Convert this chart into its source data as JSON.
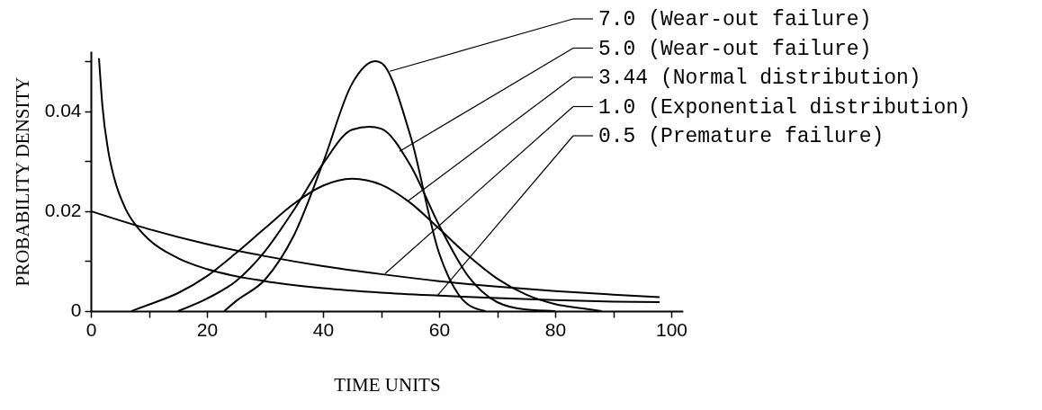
{
  "chart_data": {
    "type": "line",
    "xlabel": "TIME UNITS",
    "ylabel": "PROBABILITY DENSITY",
    "xlim": [
      0,
      102
    ],
    "xticks": [
      0,
      {
        "value": 10,
        "label": null
      },
      20,
      {
        "value": 30,
        "label": null
      },
      40,
      {
        "value": 50,
        "label": null
      },
      60,
      {
        "value": 70,
        "label": null
      },
      80,
      {
        "value": 90,
        "label": null
      },
      100
    ],
    "ylim": [
      0,
      0.052
    ],
    "yticks": [
      0,
      {
        "value": 0.01,
        "label": null
      },
      0.02,
      {
        "value": 0.03,
        "label": null
      },
      0.04,
      {
        "value": 0.05,
        "label": null
      }
    ],
    "series": [
      {
        "color": "#000000",
        "x": [
          23,
          25,
          30,
          35,
          40,
          45,
          49,
          50,
          55,
          60,
          65,
          68
        ],
        "values": [
          0.0,
          0.002,
          0.0063,
          0.0152,
          0.0297,
          0.0455,
          0.05,
          0.0497,
          0.0353,
          0.0116,
          0.0013,
          0.0
        ]
      },
      {
        "color": "#000000",
        "x": [
          15,
          20,
          25,
          30,
          35,
          40,
          45,
          48,
          50,
          55,
          60,
          65,
          70,
          75,
          80
        ],
        "values": [
          0.0,
          0.0025,
          0.006,
          0.012,
          0.0203,
          0.0295,
          0.0363,
          0.0369,
          0.0365,
          0.0293,
          0.0172,
          0.007,
          0.0018,
          0.0003,
          0.0
        ]
      },
      {
        "color": "#000000",
        "x": [
          7,
          10,
          15,
          20,
          25,
          30,
          35,
          40,
          45,
          50,
          55,
          60,
          65,
          70,
          75,
          80,
          85,
          88
        ],
        "values": [
          0.0,
          0.0013,
          0.0036,
          0.007,
          0.0116,
          0.0166,
          0.0215,
          0.0251,
          0.0265,
          0.0253,
          0.0217,
          0.0165,
          0.0111,
          0.0065,
          0.0033,
          0.0014,
          0.0005,
          0.0
        ]
      },
      {
        "color": "#000000",
        "x": [
          0,
          10,
          20,
          30,
          40,
          50,
          60,
          70,
          80,
          90,
          98
        ],
        "values": [
          0.02,
          0.0164,
          0.0134,
          0.011,
          0.009,
          0.0074,
          0.006,
          0.0049,
          0.004,
          0.0033,
          0.0028
        ]
      },
      {
        "color": "#000000",
        "x": [
          1.4,
          2,
          3,
          4,
          6,
          8,
          10,
          15,
          20,
          30,
          40,
          50,
          60,
          70,
          80,
          90,
          98
        ],
        "values": [
          0.0506,
          0.0409,
          0.032,
          0.0267,
          0.0204,
          0.0168,
          0.0143,
          0.0106,
          0.0084,
          0.006,
          0.0046,
          0.0037,
          0.0031,
          0.0026,
          0.0022,
          0.0019,
          0.0018
        ]
      }
    ],
    "annotations": [
      {
        "text": "7.0  (Wear-out failure)",
        "x": 51.5,
        "y": 0.048
      },
      {
        "text": "5.0  (Wear-out failure)",
        "x": 53.2,
        "y": 0.032
      },
      {
        "text": "3.44 (Normal distribution)",
        "x": 54.6,
        "y": 0.022
      },
      {
        "text": "1.0  (Exponential distribution)",
        "x": 50.7,
        "y": 0.0075
      },
      {
        "text": "0.5  (Premature failure)",
        "x": 59.7,
        "y": 0.0031
      }
    ]
  }
}
